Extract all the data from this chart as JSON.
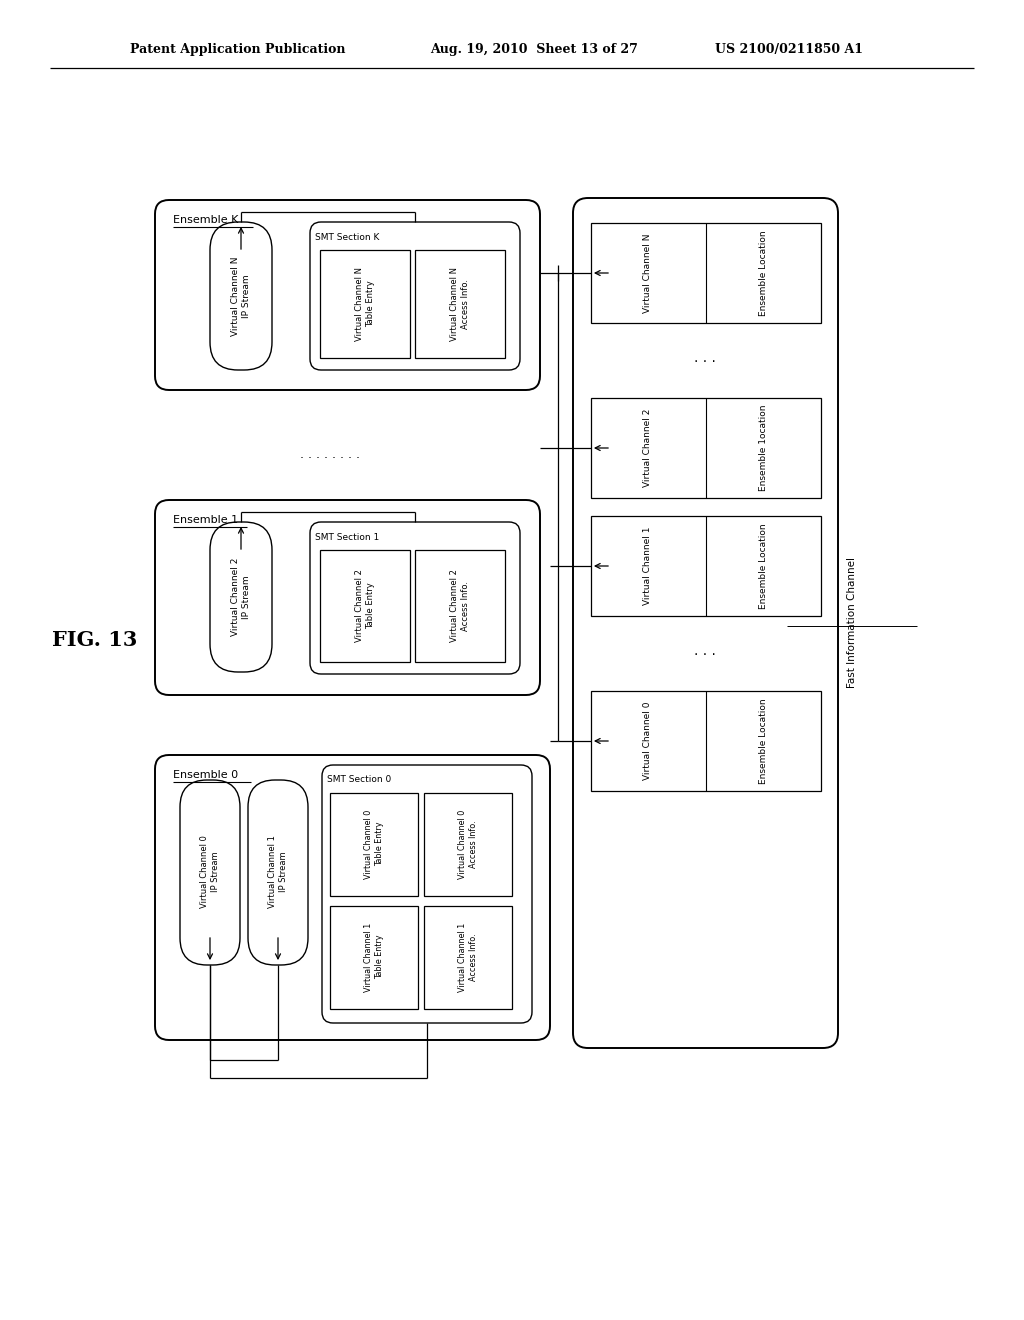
{
  "header_left": "Patent Application Publication",
  "header_mid": "Aug. 19, 2010  Sheet 13 of 27",
  "header_right": "US 2100/0211850 A1",
  "fig_label": "FIG. 13",
  "bg": "#ffffff"
}
